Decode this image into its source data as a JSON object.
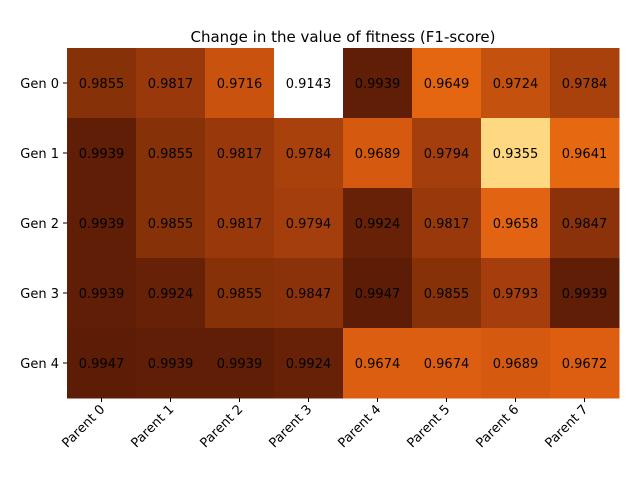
{
  "chart_data": {
    "type": "heatmap",
    "title": "Change in the value of fitness (F1-score)",
    "xlabel": "",
    "ylabel": "",
    "x_categories": [
      "Parent 0",
      "Parent 1",
      "Parent 2",
      "Parent 3",
      "Parent 4",
      "Parent 5",
      "Parent 6",
      "Parent 7"
    ],
    "y_categories": [
      "Gen 0",
      "Gen 1",
      "Gen 2",
      "Gen 3",
      "Gen 4"
    ],
    "values": [
      [
        0.9855,
        0.9817,
        0.9716,
        0.9143,
        0.9939,
        0.9649,
        0.9724,
        0.9784
      ],
      [
        0.9939,
        0.9855,
        0.9817,
        0.9784,
        0.9689,
        0.9794,
        0.9355,
        0.9641
      ],
      [
        0.9939,
        0.9855,
        0.9817,
        0.9794,
        0.9924,
        0.9817,
        0.9658,
        0.9847
      ],
      [
        0.9939,
        0.9924,
        0.9855,
        0.9847,
        0.9947,
        0.9855,
        0.9793,
        0.9939
      ],
      [
        0.9947,
        0.9939,
        0.9939,
        0.9924,
        0.9674,
        0.9674,
        0.9689,
        0.9672
      ]
    ],
    "colormap": "reversed orange-brown (light = low, dark = high)",
    "color_stops": [
      "#ffffff",
      "#ffdd88",
      "#ff8c1a",
      "#e06010",
      "#a8400c",
      "#5c1c06"
    ],
    "grid": false,
    "legend": "none"
  }
}
